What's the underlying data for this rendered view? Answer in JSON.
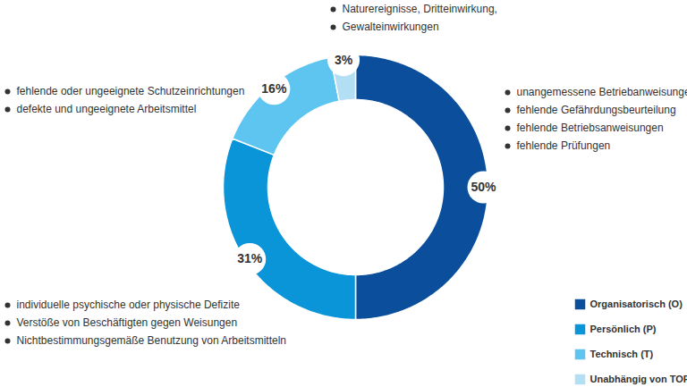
{
  "chart_data": {
    "type": "pie",
    "categories": [
      "Organisatorisch (O)",
      "Persönlich (P)",
      "Technisch (T)",
      "Unabhängig von TOP (U)"
    ],
    "values": [
      50,
      31,
      16,
      3
    ],
    "value_labels": [
      "50%",
      "31%",
      "16%",
      "3%"
    ],
    "colors": [
      "#0b4f9c",
      "#0a95d8",
      "#5ec5f1",
      "#b3dff5"
    ],
    "data_labels": true,
    "legend": "bottom-right",
    "annotations": [
      [
        "unangemessene Betriebanweisungen",
        "fehlende Gefährdungsbeurteilung",
        "fehlende Betriebsanweisungen",
        "fehlende Prüfungen"
      ],
      [
        "individuelle psychische oder physische Defizite",
        "Verstöße von Beschäftigten gegen Weisungen",
        "Nichtbestimmungsgemäße Benutzung von Arbeitsmitteln"
      ],
      [
        "fehlende oder ungeeignete Schutzeinrichtungen",
        "defekte und ungeeignete Arbeitsmittel"
      ],
      [
        "Naturereignisse, Dritteinwirkung,",
        "Gewalteinwirkungen"
      ]
    ]
  }
}
